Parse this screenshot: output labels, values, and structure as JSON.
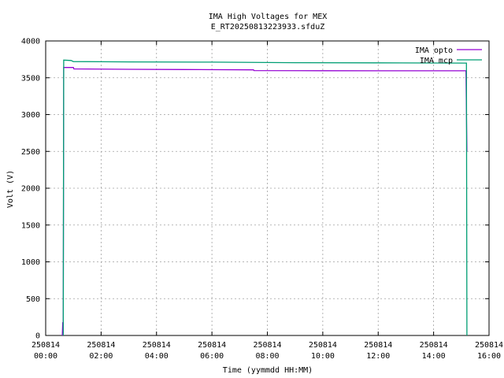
{
  "chart_data": {
    "type": "line",
    "title": "IMA High Voltages for MEX",
    "subtitle": "E_RT20250813223933.sfduZ",
    "xlabel": "Time (yymmdd HH:MM)",
    "ylabel": "Volt (V)",
    "xlim": [
      "250814 00:00",
      "250814 16:00"
    ],
    "ylim": [
      0,
      4000
    ],
    "grid": true,
    "legend_position": "top-right",
    "x_ticks": [
      {
        "date": "250814",
        "time": "00:00"
      },
      {
        "date": "250814",
        "time": "02:00"
      },
      {
        "date": "250814",
        "time": "04:00"
      },
      {
        "date": "250814",
        "time": "06:00"
      },
      {
        "date": "250814",
        "time": "08:00"
      },
      {
        "date": "250814",
        "time": "10:00"
      },
      {
        "date": "250814",
        "time": "12:00"
      },
      {
        "date": "250814",
        "time": "14:00"
      },
      {
        "date": "250814",
        "time": "16:00"
      }
    ],
    "y_ticks": [
      "0",
      "500",
      "1000",
      "1500",
      "2000",
      "2500",
      "3000",
      "3500",
      "4000"
    ],
    "series": [
      {
        "name": "IMA opto",
        "color": "#9400d3",
        "points": [
          [
            "250814 00:36",
            0
          ],
          [
            "250814 00:37",
            180
          ],
          [
            "250814 00:38",
            30
          ],
          [
            "250814 00:39",
            3640
          ],
          [
            "250814 01:00",
            3640
          ],
          [
            "250814 01:01",
            3620
          ],
          [
            "250814 03:00",
            3615
          ],
          [
            "250814 05:00",
            3612
          ],
          [
            "250814 07:30",
            3608
          ],
          [
            "250814 07:31",
            3598
          ],
          [
            "250814 10:00",
            3596
          ],
          [
            "250814 12:00",
            3595
          ],
          [
            "250814 15:10",
            3595
          ],
          [
            "250814 15:12",
            2500
          ]
        ]
      },
      {
        "name": "IMA mcp",
        "color": "#009e73",
        "points": [
          [
            "250814 00:38",
            0
          ],
          [
            "250814 00:39",
            3740
          ],
          [
            "250814 00:55",
            3735
          ],
          [
            "250814 01:00",
            3720
          ],
          [
            "250814 03:00",
            3715
          ],
          [
            "250814 06:00",
            3712
          ],
          [
            "250814 09:00",
            3705
          ],
          [
            "250814 12:00",
            3703
          ],
          [
            "250814 15:10",
            3700
          ],
          [
            "250814 15:11",
            3700
          ],
          [
            "250814 15:12",
            0
          ]
        ]
      }
    ]
  }
}
